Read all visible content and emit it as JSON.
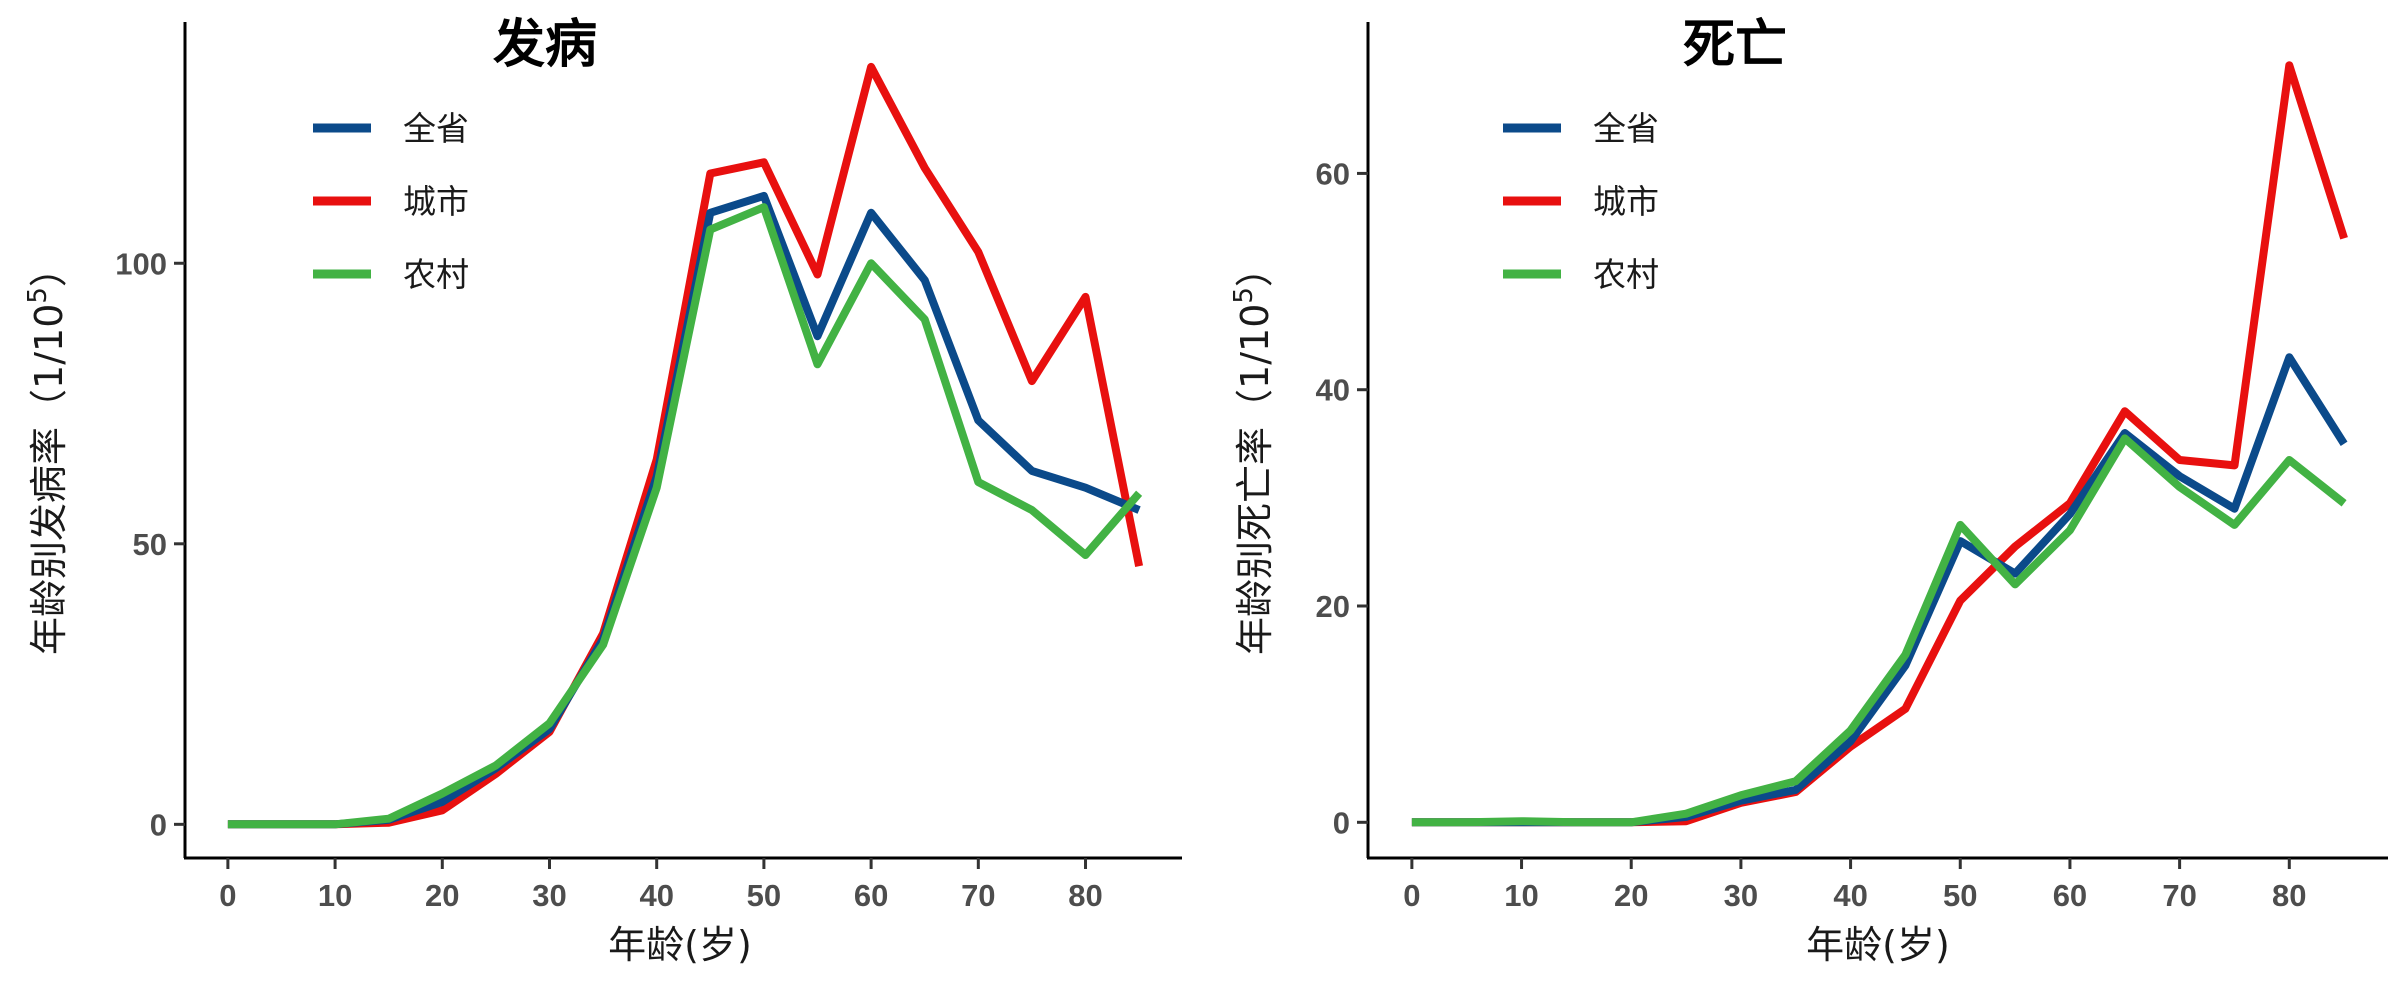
{
  "colors": {
    "全省": "#0b4a8a",
    "城市": "#e8100f",
    "农村": "#42b244"
  },
  "chart_data": [
    {
      "type": "line",
      "title": "发病",
      "xlabel": "年龄(岁)",
      "ylabel": "年龄别发病率（1/10",
      "ylabel_sup": "5",
      "ylabel_close": "）",
      "xlim": [
        -4,
        89
      ],
      "ylim": [
        -6,
        143
      ],
      "xticks": [
        0,
        10,
        20,
        30,
        40,
        50,
        60,
        70,
        80
      ],
      "yticks": [
        0,
        50,
        100
      ],
      "legend_position": "top-left",
      "x": [
        0,
        5,
        10,
        15,
        20,
        25,
        30,
        35,
        40,
        45,
        50,
        55,
        60,
        65,
        70,
        75,
        80,
        85
      ],
      "series": [
        {
          "name": "全省",
          "values": [
            0,
            0,
            0,
            0.8,
            4,
            10,
            17,
            33,
            62,
            109,
            112,
            87,
            109,
            97,
            72,
            63,
            60,
            56
          ]
        },
        {
          "name": "城市",
          "values": [
            0,
            0,
            0,
            0.3,
            2.5,
            9,
            16.5,
            34,
            65,
            116,
            118,
            98,
            135,
            117,
            102,
            79,
            94,
            46
          ]
        },
        {
          "name": "农村",
          "values": [
            0,
            0,
            0,
            1,
            5.5,
            10.5,
            18,
            32,
            60,
            106,
            110,
            82,
            100,
            90,
            61,
            56,
            48,
            59
          ]
        }
      ]
    },
    {
      "type": "line",
      "title": "死亡",
      "xlabel": "年龄(岁)",
      "ylabel": "年龄别死亡率（1/10",
      "ylabel_sup": "5",
      "ylabel_close": "）",
      "xlim": [
        -4,
        89
      ],
      "ylim": [
        -3.3,
        74
      ],
      "xticks": [
        0,
        10,
        20,
        30,
        40,
        50,
        60,
        70,
        80
      ],
      "yticks": [
        0,
        20,
        40,
        60
      ],
      "legend_position": "top-left",
      "x": [
        0,
        5,
        10,
        15,
        20,
        25,
        30,
        35,
        40,
        45,
        50,
        55,
        60,
        65,
        70,
        75,
        80,
        85
      ],
      "series": [
        {
          "name": "全省",
          "values": [
            0,
            0,
            0,
            0,
            0,
            0.5,
            2,
            3,
            7.5,
            14.5,
            26,
            23,
            28.5,
            36,
            32,
            29,
            43,
            35
          ]
        },
        {
          "name": "城市",
          "values": [
            0,
            0,
            0,
            0,
            0,
            0.1,
            1.8,
            2.8,
            7,
            10.5,
            20.5,
            25.5,
            29.5,
            38,
            33.5,
            33,
            70,
            54
          ]
        },
        {
          "name": "农村",
          "values": [
            0,
            0,
            0.1,
            0,
            0,
            0.8,
            2.5,
            3.8,
            8.5,
            15.5,
            27.5,
            22,
            27,
            35.5,
            31,
            27.5,
            33.5,
            29.5
          ]
        }
      ]
    }
  ]
}
